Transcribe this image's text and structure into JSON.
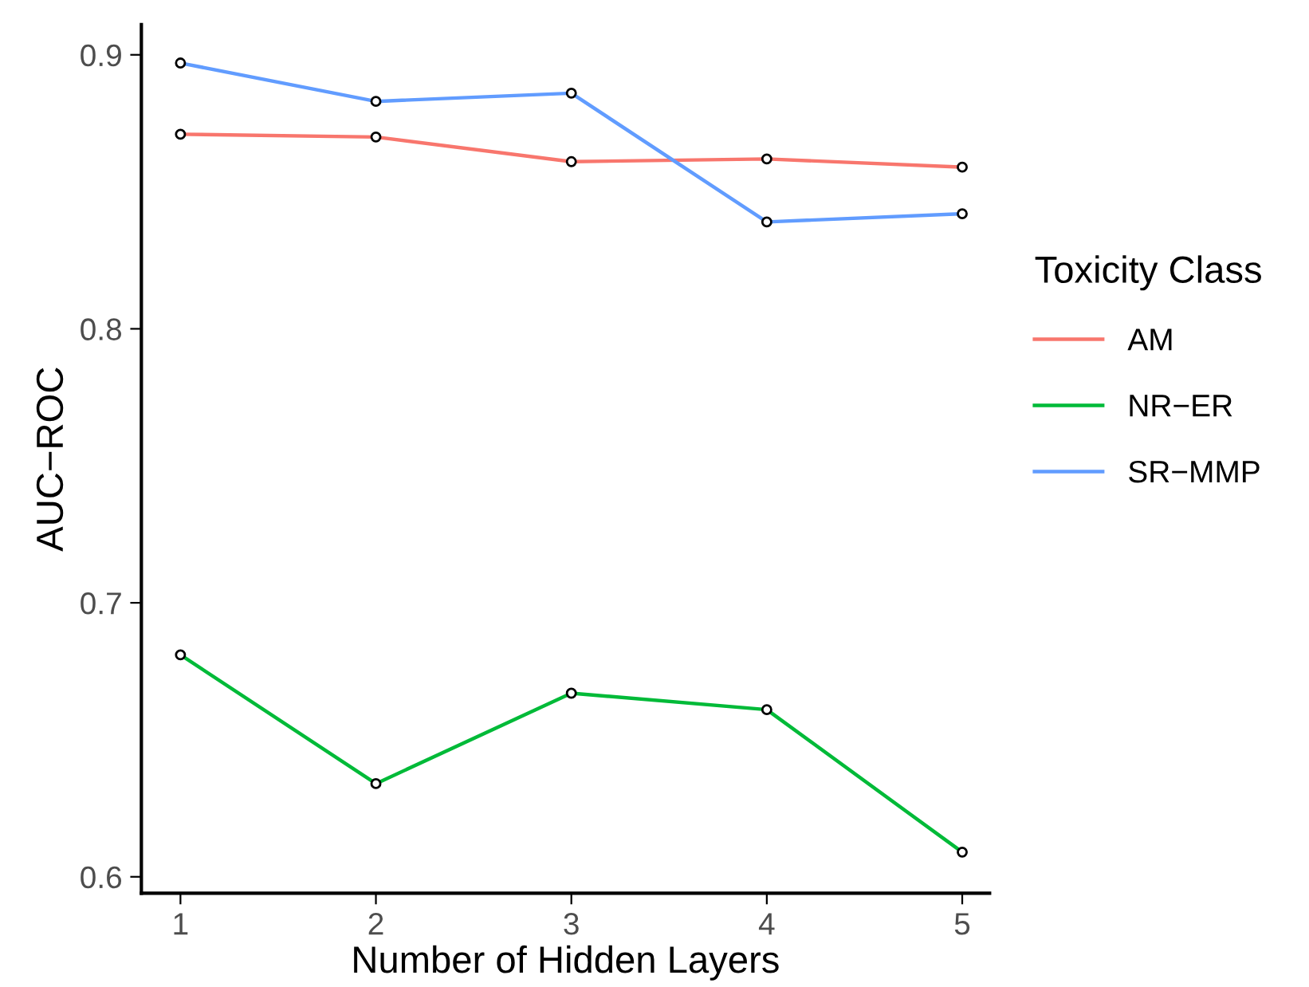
{
  "chart_data": {
    "type": "line",
    "xlabel": "Number of Hidden Layers",
    "ylabel": "AUC−ROC",
    "legend_title": "Toxicity Class",
    "x": [
      1,
      2,
      3,
      4,
      5
    ],
    "series": [
      {
        "name": "AM",
        "color": "#f8766d",
        "values": [
          0.871,
          0.87,
          0.861,
          0.862,
          0.859
        ]
      },
      {
        "name": "NR−ER",
        "color": "#00ba38",
        "values": [
          0.681,
          0.634,
          0.667,
          0.661,
          0.609
        ]
      },
      {
        "name": "SR−MMP",
        "color": "#619cff",
        "values": [
          0.897,
          0.883,
          0.886,
          0.839,
          0.842
        ]
      }
    ],
    "xlim": [
      0.8,
      5.14
    ],
    "ylim": [
      0.594,
      0.911
    ],
    "xticks": [
      1,
      2,
      3,
      4,
      5
    ],
    "yticks": [
      0.6,
      0.7,
      0.8,
      0.9
    ],
    "grid": false,
    "legend": "right",
    "marker": "circle",
    "line_style": "solid"
  }
}
